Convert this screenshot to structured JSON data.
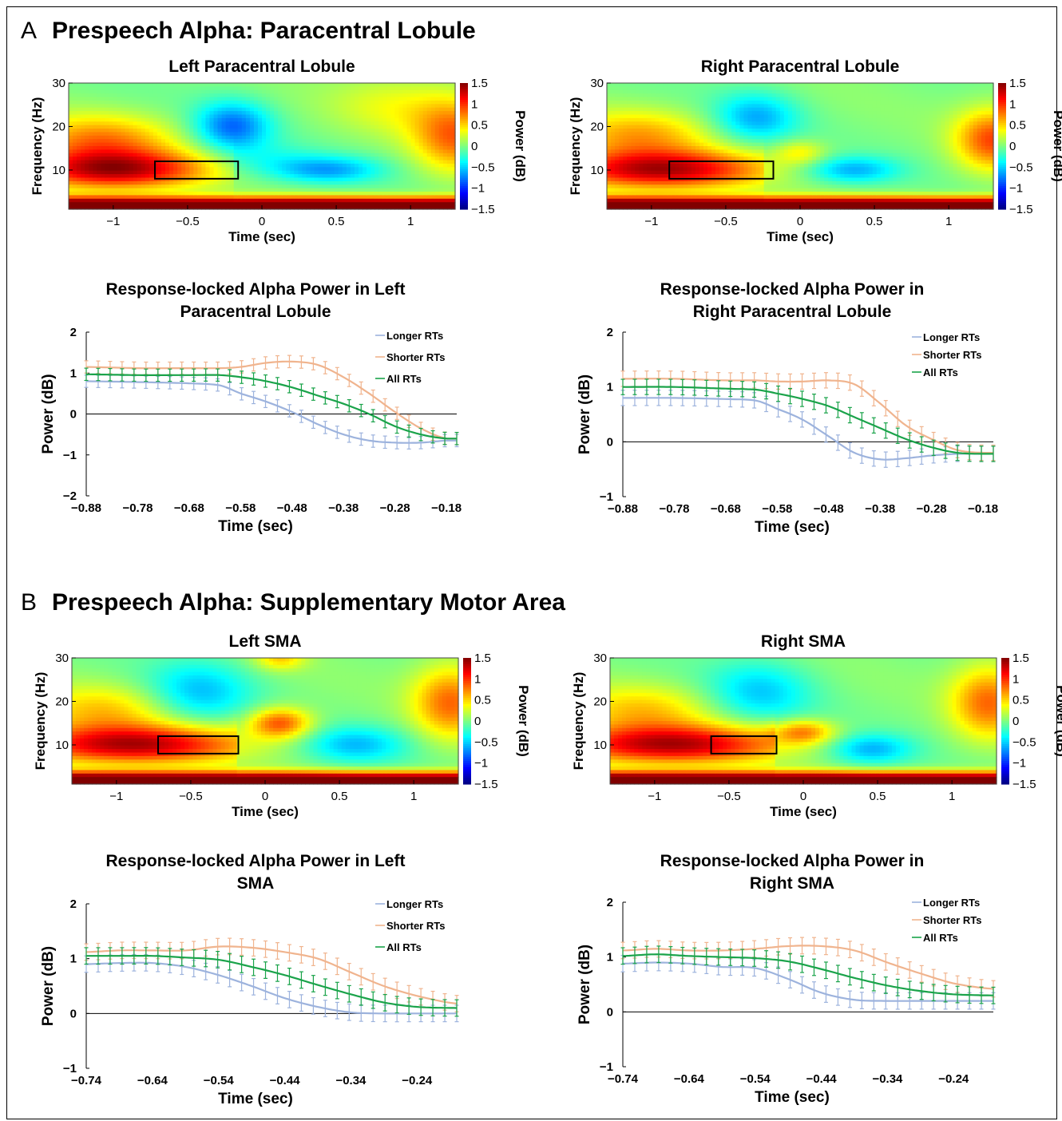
{
  "sections": [
    {
      "letter": "A",
      "title": "Prespeech Alpha: Paracentral Lobule",
      "panels": [
        {
          "title": "Left Paracentral Lobule",
          "roi": [
            -0.72,
            -0.16,
            8,
            12
          ],
          "variant": 0
        },
        {
          "title": "Right Paracentral Lobule",
          "roi": [
            -0.88,
            -0.18,
            8,
            12
          ],
          "variant": 1
        }
      ],
      "lines": [
        {
          "title": [
            "Response-locked Alpha Power in Left",
            "Paracentral Lobule"
          ]
        },
        {
          "title": [
            "Response-locked Alpha Power in",
            "Right Paracentral Lobule"
          ]
        }
      ]
    },
    {
      "letter": "B",
      "title": "Prespeech Alpha: Supplementary Motor Area",
      "panels": [
        {
          "title": "Left SMA",
          "roi": [
            -0.72,
            -0.18,
            8,
            12
          ],
          "variant": 2
        },
        {
          "title": "Right SMA",
          "roi": [
            -0.62,
            -0.18,
            8,
            12
          ],
          "variant": 3
        }
      ],
      "lines": [
        {
          "title": [
            "Response-locked Alpha Power in Left",
            "SMA"
          ]
        },
        {
          "title": [
            "Response-locked Alpha Power in",
            "Right SMA"
          ]
        }
      ]
    }
  ],
  "heatmap_axes": {
    "xlabel": "Time (sec)",
    "ylabel": "Frequency (Hz)",
    "colorbar_label": "Power (dB)",
    "xticks": [
      "-1",
      "-0.5",
      "0",
      "0.5",
      "1"
    ],
    "yticks": [
      "30",
      "20",
      "10"
    ],
    "colorbar_ticks": [
      "1.5",
      "1",
      "0.5",
      "0",
      "-0.5",
      "-1",
      "-1.5"
    ],
    "colormap": "jet"
  },
  "line_axes": {
    "xlabel": "Time (sec)",
    "ylabel": "Power (dB)",
    "legend": [
      "Longer RTs",
      "Shorter RTs",
      "All RTs"
    ],
    "colors": {
      "longer": "#9db3dd",
      "shorter": "#f0b48e",
      "all": "#1aa34a"
    }
  },
  "chart_data": [
    {
      "type": "heatmap",
      "title": "Left Paracentral Lobule",
      "xlabel": "Time (sec)",
      "ylabel": "Frequency (Hz)",
      "xlim": [
        -1.3,
        1.3
      ],
      "ylim": [
        1,
        30
      ],
      "clim": [
        -1.5,
        1.5
      ],
      "features": [
        {
          "t": -0.8,
          "f": 10,
          "value": 1.3
        },
        {
          "t": -0.2,
          "f": 20,
          "value": -0.7
        },
        {
          "t": 0.4,
          "f": 10,
          "value": -0.6
        },
        {
          "t": 1.25,
          "f": 20,
          "value": 0.8
        }
      ]
    },
    {
      "type": "heatmap",
      "title": "Right Paracentral Lobule",
      "xlabel": "Time (sec)",
      "ylabel": "Frequency (Hz)",
      "xlim": [
        -1.3,
        1.3
      ],
      "ylim": [
        1,
        30
      ],
      "clim": [
        -1.5,
        1.5
      ],
      "features": [
        {
          "t": -0.8,
          "f": 10,
          "value": 1.3
        },
        {
          "t": -0.25,
          "f": 21,
          "value": -0.5
        },
        {
          "t": 0.35,
          "f": 10,
          "value": -0.6
        },
        {
          "t": 1.25,
          "f": 18,
          "value": 0.9
        }
      ]
    },
    {
      "type": "heatmap",
      "title": "Left SMA",
      "xlabel": "Time (sec)",
      "ylabel": "Frequency (Hz)",
      "xlim": [
        -1.3,
        1.3
      ],
      "ylim": [
        1,
        30
      ],
      "clim": [
        -1.5,
        1.5
      ],
      "features": [
        {
          "t": -0.7,
          "f": 10,
          "value": 1.3
        },
        {
          "t": 0.1,
          "f": 15,
          "value": 1.0
        },
        {
          "t": 0.6,
          "f": 10,
          "value": -0.5
        },
        {
          "t": 1.2,
          "f": 20,
          "value": 0.8
        }
      ]
    },
    {
      "type": "heatmap",
      "title": "Right SMA",
      "xlabel": "Time (sec)",
      "ylabel": "Frequency (Hz)",
      "xlim": [
        -1.3,
        1.3
      ],
      "ylim": [
        1,
        30
      ],
      "clim": [
        -1.5,
        1.5
      ],
      "features": [
        {
          "t": -0.7,
          "f": 10,
          "value": 1.3
        },
        {
          "t": 0.0,
          "f": 13,
          "value": 0.8
        },
        {
          "t": 0.4,
          "f": 9,
          "value": -0.6
        },
        {
          "t": 1.2,
          "f": 20,
          "value": 0.8
        }
      ]
    },
    {
      "type": "line",
      "title": "Response-locked Alpha Power in Left Paracentral Lobule",
      "xlabel": "Time (sec)",
      "ylabel": "Power (dB)",
      "xlim": [
        -0.88,
        -0.16
      ],
      "ylim": [
        -2,
        2
      ],
      "xticks": [
        -0.88,
        -0.78,
        -0.68,
        -0.58,
        -0.48,
        -0.38,
        -0.28,
        -0.18
      ],
      "xtick_labels": [
        "−0.88",
        "−0.78",
        "−0.68",
        "−0.58",
        "−0.48",
        "−0.38",
        "−0.28",
        "−0.18"
      ],
      "yticks": [
        2,
        1,
        0,
        -1,
        -2
      ],
      "ytick_labels": [
        "2",
        "1",
        "0",
        "−1",
        "−2"
      ],
      "legend": {
        "labels": [
          "Longer RTs",
          "Shorter RTs",
          "All RTs"
        ],
        "position": "top-right"
      },
      "x": [
        -0.88,
        -0.78,
        -0.68,
        -0.62,
        -0.58,
        -0.53,
        -0.48,
        -0.43,
        -0.38,
        -0.33,
        -0.28,
        -0.23,
        -0.18
      ],
      "err": 0.15,
      "series": [
        {
          "name": "Longer RTs",
          "values": [
            0.8,
            0.78,
            0.75,
            0.7,
            0.5,
            0.3,
            0.05,
            -0.25,
            -0.5,
            -0.65,
            -0.7,
            -0.7,
            -0.65
          ]
        },
        {
          "name": "Shorter RTs",
          "values": [
            1.15,
            1.12,
            1.12,
            1.12,
            1.15,
            1.25,
            1.28,
            1.2,
            0.9,
            0.5,
            0.05,
            -0.35,
            -0.6
          ]
        },
        {
          "name": "All RTs",
          "values": [
            0.97,
            0.95,
            0.95,
            0.95,
            0.9,
            0.8,
            0.65,
            0.45,
            0.25,
            0.0,
            -0.3,
            -0.5,
            -0.6
          ]
        }
      ]
    },
    {
      "type": "line",
      "title": "Response-locked Alpha Power in Right Paracentral Lobule",
      "xlabel": "Time (sec)",
      "ylabel": "Power (dB)",
      "xlim": [
        -0.88,
        -0.16
      ],
      "ylim": [
        -1,
        2
      ],
      "xticks": [
        -0.88,
        -0.78,
        -0.68,
        -0.58,
        -0.48,
        -0.38,
        -0.28,
        -0.18
      ],
      "xtick_labels": [
        "−0.88",
        "−0.78",
        "−0.68",
        "−0.58",
        "−0.48",
        "−0.38",
        "−0.28",
        "−0.18"
      ],
      "yticks": [
        2,
        1,
        0,
        -1
      ],
      "ytick_labels": [
        "2",
        "1",
        "0",
        "−1"
      ],
      "legend": {
        "labels": [
          "Longer RTs",
          "Shorter RTs",
          "All RTs"
        ],
        "position": "top-right"
      },
      "x": [
        -0.88,
        -0.78,
        -0.68,
        -0.62,
        -0.58,
        -0.53,
        -0.48,
        -0.43,
        -0.38,
        -0.33,
        -0.28,
        -0.23,
        -0.18
      ],
      "err": 0.14,
      "series": [
        {
          "name": "Longer RTs",
          "values": [
            0.8,
            0.8,
            0.78,
            0.75,
            0.6,
            0.4,
            0.1,
            -0.2,
            -0.32,
            -0.3,
            -0.25,
            -0.22,
            -0.22
          ]
        },
        {
          "name": "Shorter RTs",
          "values": [
            1.15,
            1.15,
            1.12,
            1.12,
            1.1,
            1.1,
            1.12,
            1.05,
            0.7,
            0.3,
            0.05,
            -0.15,
            -0.2
          ]
        },
        {
          "name": "All RTs",
          "values": [
            1.0,
            1.0,
            0.97,
            0.95,
            0.88,
            0.78,
            0.65,
            0.45,
            0.25,
            0.05,
            -0.1,
            -0.2,
            -0.22
          ]
        }
      ]
    },
    {
      "type": "line",
      "title": "Response-locked Alpha Power in Left SMA",
      "xlabel": "Time (sec)",
      "ylabel": "Power (dB)",
      "xlim": [
        -0.74,
        -0.18
      ],
      "ylim": [
        -1,
        2
      ],
      "xticks": [
        -0.74,
        -0.64,
        -0.54,
        -0.44,
        -0.34,
        -0.24
      ],
      "xtick_labels": [
        "−0.74",
        "−0.64",
        "−0.54",
        "−0.44",
        "−0.34",
        "−0.24"
      ],
      "yticks": [
        2,
        1,
        0,
        -1
      ],
      "ytick_labels": [
        "2",
        "1",
        "0",
        "−1"
      ],
      "legend": {
        "labels": [
          "Longer RTs",
          "Shorter RTs",
          "All RTs"
        ],
        "position": "top-right"
      },
      "x": [
        -0.74,
        -0.69,
        -0.64,
        -0.59,
        -0.54,
        -0.49,
        -0.44,
        -0.39,
        -0.34,
        -0.29,
        -0.24,
        -0.18
      ],
      "err": 0.15,
      "series": [
        {
          "name": "Longer RTs",
          "values": [
            0.9,
            0.92,
            0.92,
            0.85,
            0.7,
            0.5,
            0.28,
            0.12,
            0.02,
            0.0,
            0.0,
            0.0
          ]
        },
        {
          "name": "Shorter RTs",
          "values": [
            1.12,
            1.15,
            1.15,
            1.15,
            1.22,
            1.2,
            1.12,
            1.0,
            0.75,
            0.5,
            0.32,
            0.18
          ]
        },
        {
          "name": "All RTs",
          "values": [
            1.05,
            1.05,
            1.05,
            1.02,
            0.98,
            0.85,
            0.7,
            0.52,
            0.35,
            0.2,
            0.12,
            0.1
          ]
        }
      ]
    },
    {
      "type": "line",
      "title": "Response-locked Alpha Power in Right SMA",
      "xlabel": "Time (sec)",
      "ylabel": "Power (dB)",
      "xlim": [
        -0.74,
        -0.18
      ],
      "ylim": [
        -1,
        2
      ],
      "xticks": [
        -0.74,
        -0.64,
        -0.54,
        -0.44,
        -0.34,
        -0.24
      ],
      "xtick_labels": [
        "−0.74",
        "−0.64",
        "−0.54",
        "−0.44",
        "−0.34",
        "−0.24"
      ],
      "yticks": [
        2,
        1,
        0,
        -1
      ],
      "ytick_labels": [
        "2",
        "1",
        "0",
        "−1"
      ],
      "legend": {
        "labels": [
          "Longer RTs",
          "Shorter RTs",
          "All RTs"
        ],
        "position": "top-right"
      },
      "x": [
        -0.74,
        -0.69,
        -0.64,
        -0.59,
        -0.54,
        -0.49,
        -0.44,
        -0.39,
        -0.34,
        -0.29,
        -0.24,
        -0.18
      ],
      "err": 0.15,
      "series": [
        {
          "name": "Longer RTs",
          "values": [
            0.88,
            0.9,
            0.88,
            0.82,
            0.8,
            0.6,
            0.35,
            0.22,
            0.2,
            0.2,
            0.2,
            0.2
          ]
        },
        {
          "name": "Shorter RTs",
          "values": [
            1.12,
            1.15,
            1.12,
            1.12,
            1.15,
            1.2,
            1.2,
            1.12,
            0.9,
            0.7,
            0.52,
            0.42
          ]
        },
        {
          "name": "All RTs",
          "values": [
            1.02,
            1.05,
            1.02,
            1.0,
            0.98,
            0.92,
            0.78,
            0.62,
            0.48,
            0.38,
            0.32,
            0.3
          ]
        }
      ]
    }
  ]
}
